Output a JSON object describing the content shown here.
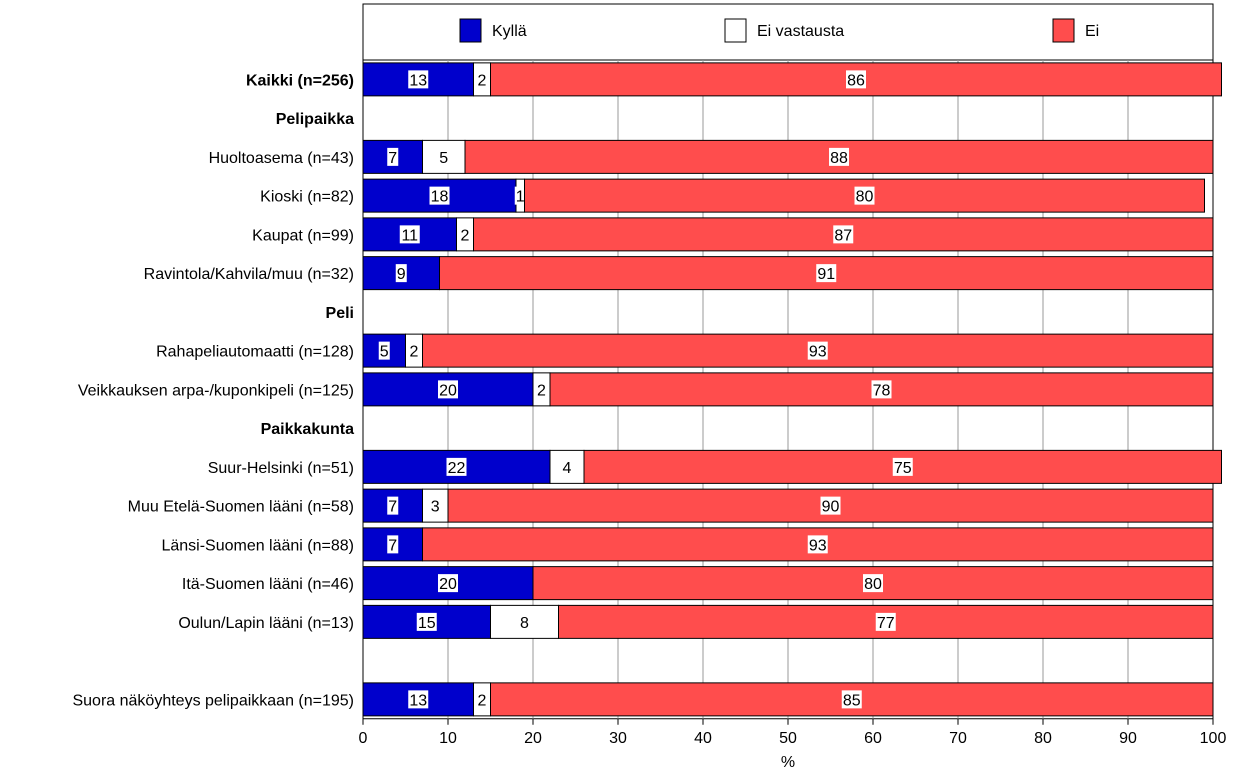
{
  "chart_data": {
    "type": "bar",
    "orientation": "horizontal",
    "stacked": true,
    "legend_position": "top",
    "grid": true,
    "xlabel": "%",
    "xlim": [
      0,
      100
    ],
    "xticks": [
      "0",
      "10",
      "20",
      "30",
      "40",
      "50",
      "60",
      "70",
      "80",
      "90",
      "100"
    ],
    "series": [
      {
        "name": "Kyllä",
        "color": "#0000cc"
      },
      {
        "name": "Ei vastausta",
        "color": "#ffffff"
      },
      {
        "name": "Ei",
        "color": "#ff4d4d"
      }
    ],
    "rows": [
      {
        "label": "Kaikki (n=256)",
        "bold": true,
        "values": [
          13,
          2,
          86
        ]
      },
      {
        "label": "Pelipaikka",
        "bold": true,
        "header": true
      },
      {
        "label": "Huoltoasema (n=43)",
        "values": [
          7,
          5,
          88
        ]
      },
      {
        "label": "Kioski (n=82)",
        "values": [
          18,
          1,
          80
        ]
      },
      {
        "label": "Kaupat (n=99)",
        "values": [
          11,
          2,
          87
        ]
      },
      {
        "label": "Ravintola/Kahvila/muu (n=32)",
        "values": [
          9,
          null,
          91
        ]
      },
      {
        "label": "Peli",
        "bold": true,
        "header": true
      },
      {
        "label": "Rahapeliautomaatti (n=128)",
        "values": [
          5,
          2,
          93
        ]
      },
      {
        "label": "Veikkauksen arpa-/kuponkipeli (n=125)",
        "values": [
          20,
          2,
          78
        ]
      },
      {
        "label": "Paikkakunta",
        "bold": true,
        "header": true
      },
      {
        "label": "Suur-Helsinki (n=51)",
        "values": [
          22,
          4,
          75
        ]
      },
      {
        "label": "Muu Etelä-Suomen lääni (n=58)",
        "values": [
          7,
          3,
          90
        ]
      },
      {
        "label": "Länsi-Suomen lääni (n=88)",
        "values": [
          7,
          null,
          93
        ]
      },
      {
        "label": "Itä-Suomen lääni (n=46)",
        "values": [
          20,
          null,
          80
        ]
      },
      {
        "label": "Oulun/Lapin lääni (n=13)",
        "values": [
          15,
          8,
          77
        ]
      },
      {
        "label": "",
        "spacer": true
      },
      {
        "label": "Suora näköyhteys pelipaikkaan (n=195)",
        "values": [
          13,
          2,
          85
        ]
      }
    ]
  }
}
